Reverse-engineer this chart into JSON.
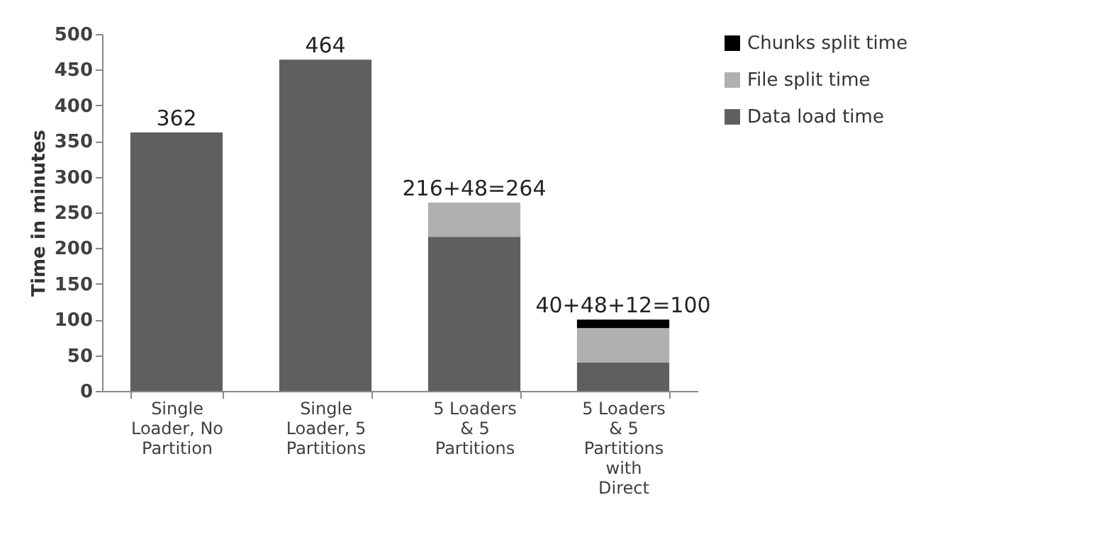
{
  "chart_data": {
    "type": "bar",
    "stacked": true,
    "ylabel": "Time in minutes",
    "categories": [
      "Single Loader, No Partition",
      "Single Loader, 5 Partitions",
      "5 Loaders & 5 Partitions",
      "5 Loaders & 5 Partitions with Direct"
    ],
    "series": [
      {
        "name": "Data load time",
        "color": "#5f5f5f",
        "values": [
          362,
          464,
          216,
          40
        ]
      },
      {
        "name": "File split time",
        "color": "#b0b0b0",
        "values": [
          0,
          0,
          48,
          48
        ]
      },
      {
        "name": "Chunks split time",
        "color": "#000000",
        "values": [
          0,
          0,
          0,
          12
        ]
      }
    ],
    "totals": [
      "362",
      "464",
      "216+48=264",
      "40+48+12=100"
    ],
    "ylim": [
      0,
      500
    ],
    "yticks": [
      0,
      50,
      100,
      150,
      200,
      250,
      300,
      350,
      400,
      450,
      500
    ],
    "grid": false,
    "legend": "right"
  }
}
